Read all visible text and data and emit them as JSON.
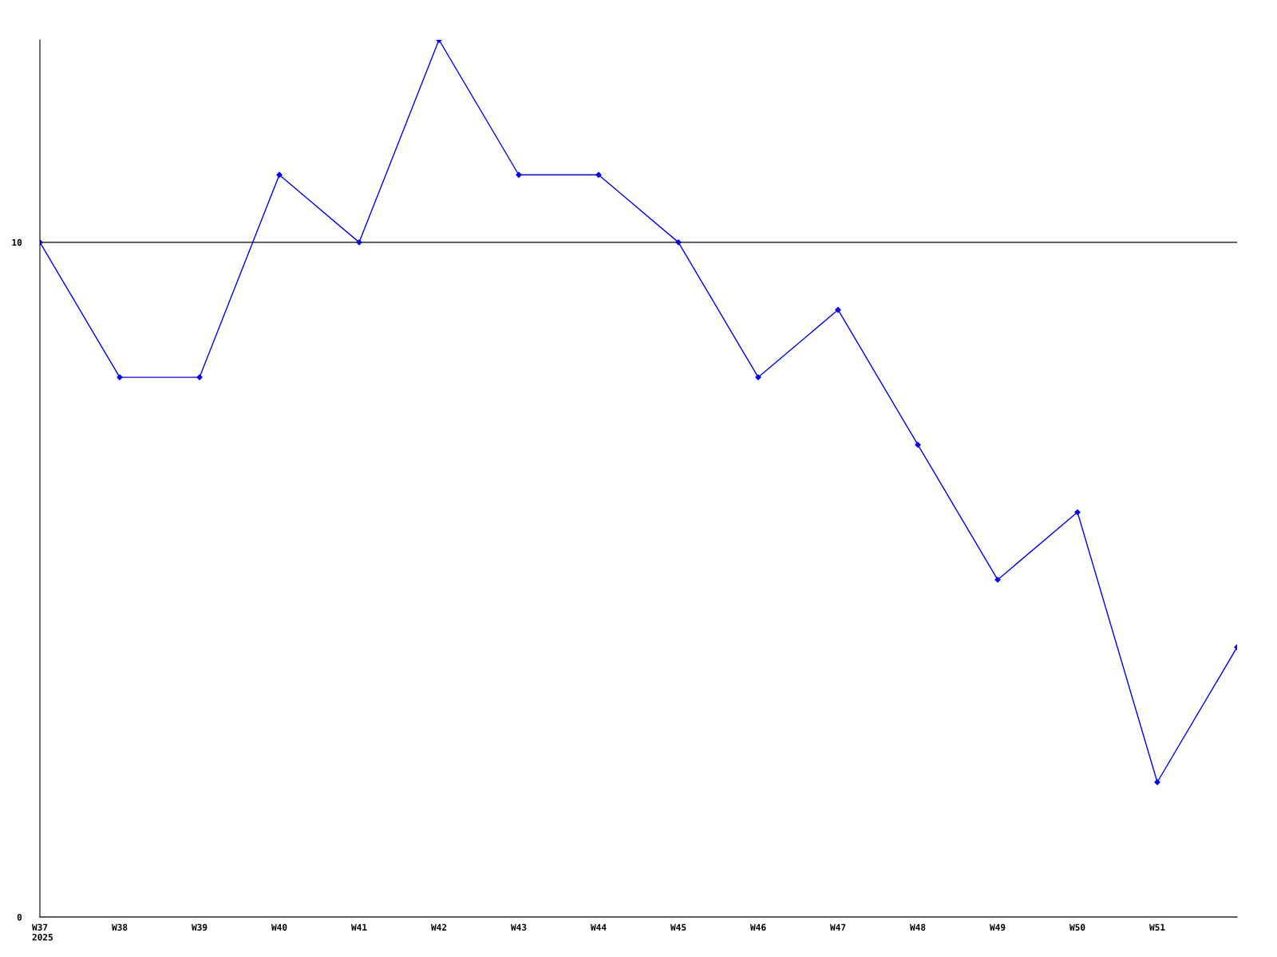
{
  "chart_data": {
    "type": "line",
    "categories": [
      "W37\n2025",
      "W38",
      "W39",
      "W40",
      "W41",
      "W42",
      "W43",
      "W44",
      "W45",
      "W46",
      "W47",
      "W48",
      "W49",
      "W50",
      "W51",
      null
    ],
    "series": [
      {
        "color": "#0000ff",
        "values": [
          10,
          8,
          8,
          11,
          10,
          13,
          11,
          11,
          10,
          8,
          9,
          7,
          5,
          6,
          2,
          4
        ]
      }
    ],
    "ylim": [
      0,
      13
    ],
    "yticks": [
      0,
      10
    ],
    "grid": "y",
    "marker": "diamond",
    "line_style": "solid"
  }
}
